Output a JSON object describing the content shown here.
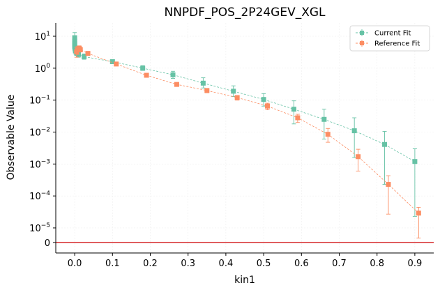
{
  "chart_data": {
    "type": "scatter",
    "title": "NNPDF_POS_2P24GEV_XGL",
    "xlabel": "kin1",
    "ylabel": "Observable Value",
    "yscale": "symlog",
    "xlim": [
      -0.05,
      0.95
    ],
    "x_ticks": [
      0.0,
      0.1,
      0.2,
      0.3,
      0.4,
      0.5,
      0.6,
      0.7,
      0.8,
      0.9
    ],
    "x_tick_labels": [
      "0.0",
      "0.1",
      "0.2",
      "0.3",
      "0.4",
      "0.5",
      "0.6",
      "0.7",
      "0.8",
      "0.9"
    ],
    "y_tick_labels": [
      {
        "value": 0,
        "base": "0",
        "exp": ""
      },
      {
        "value": 1e-05,
        "base": "10",
        "exp": "−5"
      },
      {
        "value": 0.0001,
        "base": "10",
        "exp": "−4"
      },
      {
        "value": 0.001,
        "base": "10",
        "exp": "−3"
      },
      {
        "value": 0.01,
        "base": "10",
        "exp": "−2"
      },
      {
        "value": 0.1,
        "base": "10",
        "exp": "−1"
      },
      {
        "value": 1,
        "base": "10",
        "exp": "0"
      },
      {
        "value": 10,
        "base": "10",
        "exp": "1"
      }
    ],
    "zero_line_color": "#d62728",
    "grid": true,
    "legend_position": "top-right",
    "series": [
      {
        "name": "Current Fit",
        "color": "#66c2a5",
        "points": [
          {
            "x": 0.0,
            "y": 9.0,
            "lo": 6.0,
            "hi": 13.0
          },
          {
            "x": 0.0,
            "y": 7.0,
            "lo": 5.0,
            "hi": 10.0
          },
          {
            "x": 0.0,
            "y": 6.0,
            "lo": 4.0,
            "hi": 8.5
          },
          {
            "x": 0.0,
            "y": 5.2,
            "lo": 3.8,
            "hi": 7.0
          },
          {
            "x": 0.0,
            "y": 4.6,
            "lo": 3.5,
            "hi": 6.0
          },
          {
            "x": 0.001,
            "y": 4.0,
            "lo": 3.0,
            "hi": 5.5
          },
          {
            "x": 0.002,
            "y": 3.5,
            "lo": 2.8,
            "hi": 4.6
          },
          {
            "x": 0.005,
            "y": 3.0,
            "lo": 2.5,
            "hi": 3.8
          },
          {
            "x": 0.01,
            "y": 2.7,
            "lo": 2.2,
            "hi": 3.4
          },
          {
            "x": 0.025,
            "y": 2.3,
            "lo": 1.9,
            "hi": 2.8
          },
          {
            "x": 0.1,
            "y": 1.6,
            "lo": 1.4,
            "hi": 1.8
          },
          {
            "x": 0.18,
            "y": 1.0,
            "lo": 0.85,
            "hi": 1.2
          },
          {
            "x": 0.26,
            "y": 0.62,
            "lo": 0.48,
            "hi": 0.8
          },
          {
            "x": 0.34,
            "y": 0.34,
            "lo": 0.24,
            "hi": 0.5
          },
          {
            "x": 0.42,
            "y": 0.19,
            "lo": 0.13,
            "hi": 0.28
          },
          {
            "x": 0.5,
            "y": 0.105,
            "lo": 0.065,
            "hi": 0.16
          },
          {
            "x": 0.58,
            "y": 0.052,
            "lo": 0.018,
            "hi": 0.095
          },
          {
            "x": 0.66,
            "y": 0.025,
            "lo": 0.006,
            "hi": 0.052
          },
          {
            "x": 0.74,
            "y": 0.011,
            "lo": 0.0016,
            "hi": 0.028
          },
          {
            "x": 0.82,
            "y": 0.0041,
            "lo": 0.00023,
            "hi": 0.0105
          },
          {
            "x": 0.9,
            "y": 0.0012,
            "lo": 2.3e-05,
            "hi": 0.003
          }
        ]
      },
      {
        "name": "Reference Fit",
        "color": "#fc8d62",
        "points": [
          {
            "x": 0.005,
            "y": 3.3,
            "lo": 2.2,
            "hi": 4.4
          },
          {
            "x": 0.008,
            "y": 3.8,
            "lo": 2.7,
            "hi": 4.8
          },
          {
            "x": 0.012,
            "y": 4.2,
            "lo": 3.4,
            "hi": 5.0
          },
          {
            "x": 0.015,
            "y": 3.8,
            "lo": 3.2,
            "hi": 4.5
          },
          {
            "x": 0.035,
            "y": 2.9,
            "lo": 2.6,
            "hi": 3.3
          },
          {
            "x": 0.11,
            "y": 1.35,
            "lo": 1.2,
            "hi": 1.5
          },
          {
            "x": 0.19,
            "y": 0.6,
            "lo": 0.53,
            "hi": 0.68
          },
          {
            "x": 0.27,
            "y": 0.31,
            "lo": 0.27,
            "hi": 0.35
          },
          {
            "x": 0.35,
            "y": 0.2,
            "lo": 0.17,
            "hi": 0.23
          },
          {
            "x": 0.43,
            "y": 0.12,
            "lo": 0.1,
            "hi": 0.14
          },
          {
            "x": 0.51,
            "y": 0.065,
            "lo": 0.05,
            "hi": 0.08
          },
          {
            "x": 0.59,
            "y": 0.028,
            "lo": 0.02,
            "hi": 0.036
          },
          {
            "x": 0.67,
            "y": 0.0085,
            "lo": 0.0048,
            "hi": 0.013
          },
          {
            "x": 0.75,
            "y": 0.0017,
            "lo": 0.0006,
            "hi": 0.0029
          },
          {
            "x": 0.83,
            "y": 0.00023,
            "lo": 2.7e-05,
            "hi": 0.00043
          },
          {
            "x": 0.91,
            "y": 2.9e-05,
            "lo": 3e-06,
            "hi": 4.4e-05
          }
        ]
      }
    ]
  }
}
